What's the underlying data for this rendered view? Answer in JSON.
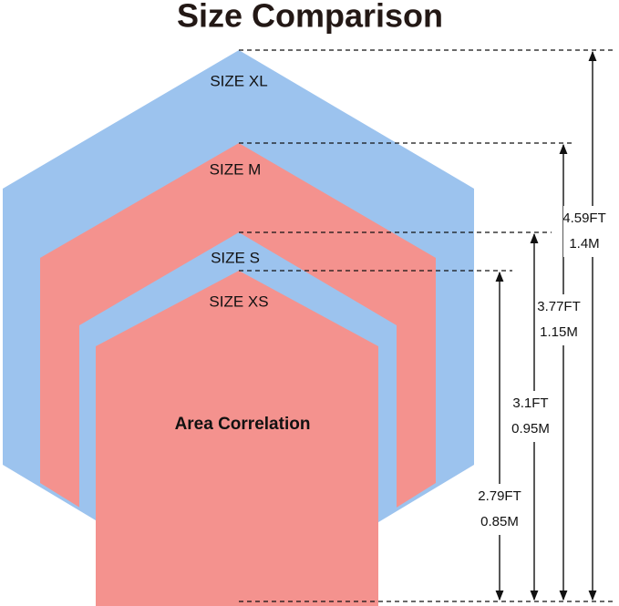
{
  "title": "Size Comparison",
  "center_label": "Area Correlation",
  "sizes": [
    {
      "label": "SIZE XL",
      "ft": "4.59FT",
      "m": "1.4M"
    },
    {
      "label": "SIZE M",
      "ft": "3.77FT",
      "m": "1.15M"
    },
    {
      "label": "SIZE S",
      "ft": "3.1FT",
      "m": "0.95M"
    },
    {
      "label": "SIZE XS",
      "ft": "2.79FT",
      "m": "0.85M"
    }
  ]
}
